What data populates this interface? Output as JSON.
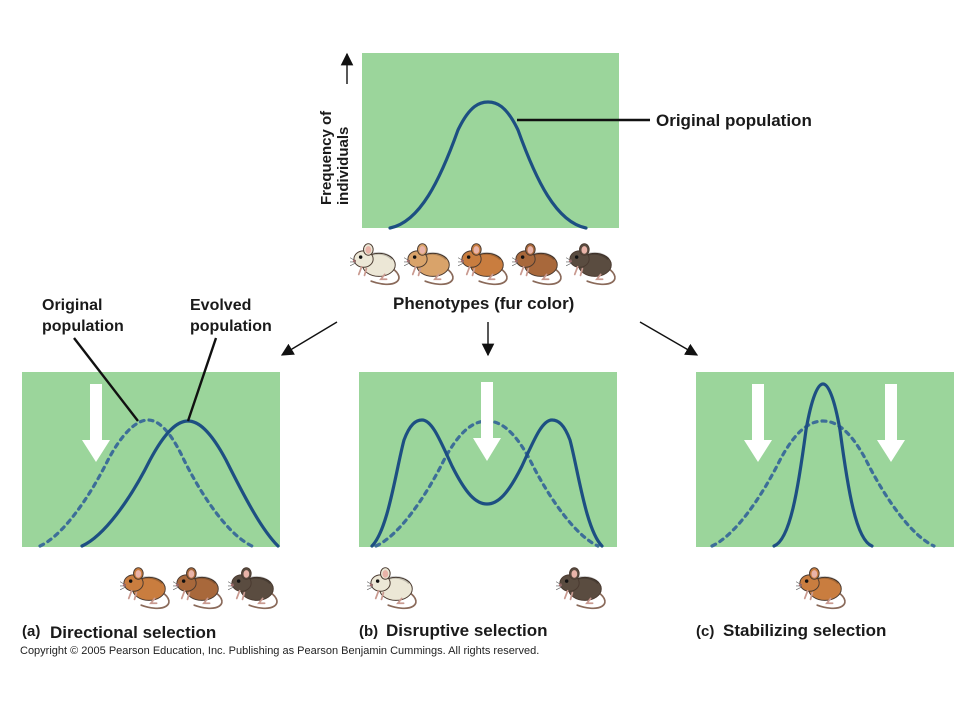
{
  "top": {
    "y_axis_label_line1": "Frequency of",
    "y_axis_label_line2": "individuals",
    "curve_label": "Original population",
    "x_axis_label": "Phenotypes (fur color)"
  },
  "panel_a": {
    "letter": "(a)",
    "title": "Directional selection",
    "label_original_line1": "Original",
    "label_original_line2": "population",
    "label_evolved_line1": "Evolved",
    "label_evolved_line2": "population"
  },
  "panel_b": {
    "letter": "(b)",
    "title": "Disruptive selection"
  },
  "panel_c": {
    "letter": "(c)",
    "title": "Stabilizing selection"
  },
  "copyright": "Copyright © 2005 Pearson Education, Inc. Publishing as Pearson Benjamin Cummings. All rights reserved.",
  "colors": {
    "panel_green": "#9bd59b",
    "curve_blue": "#1d4f82",
    "mouse_light": "#ece7d6",
    "mouse_tan": "#d9a36a",
    "mouse_orange": "#c97d3f",
    "mouse_brown": "#a8683b",
    "mouse_dark": "#5a4c40"
  }
}
